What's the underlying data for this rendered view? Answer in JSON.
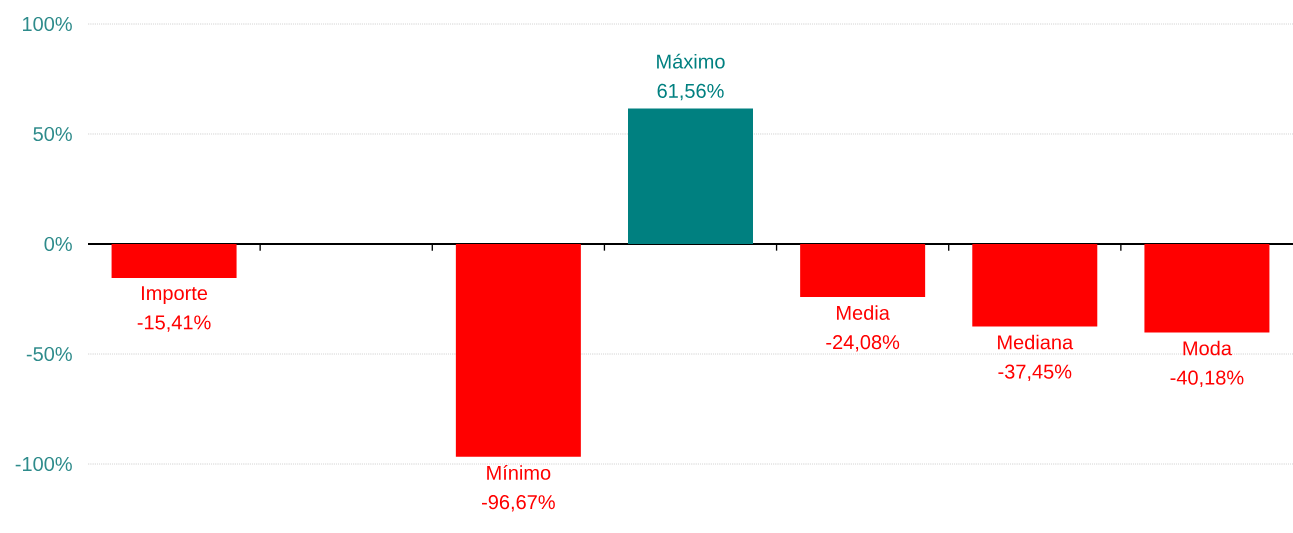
{
  "chart_data": {
    "type": "bar",
    "categories": [
      "Importe",
      null,
      "Mínimo",
      "Máximo",
      "Media",
      "Mediana",
      "Moda"
    ],
    "values": [
      -15.41,
      null,
      -96.67,
      61.56,
      -24.08,
      -37.45,
      -40.18
    ],
    "colors": [
      "#ff0000",
      "#ff0000",
      "#ff0000",
      "#008080",
      "#ff0000",
      "#ff0000",
      "#ff0000"
    ],
    "value_labels": [
      "-15,41%",
      null,
      "-96,67%",
      "61,56%",
      "-24,08%",
      "-37,45%",
      "-40,18%"
    ],
    "ylim": [
      -100,
      100
    ],
    "yticks": [
      {
        "value": -100,
        "label": "-100%"
      },
      {
        "value": -50,
        "label": "-50%"
      },
      {
        "value": 0,
        "label": "0%"
      },
      {
        "value": 50,
        "label": "50%"
      },
      {
        "value": 100,
        "label": "100%"
      }
    ],
    "grid": "y"
  }
}
